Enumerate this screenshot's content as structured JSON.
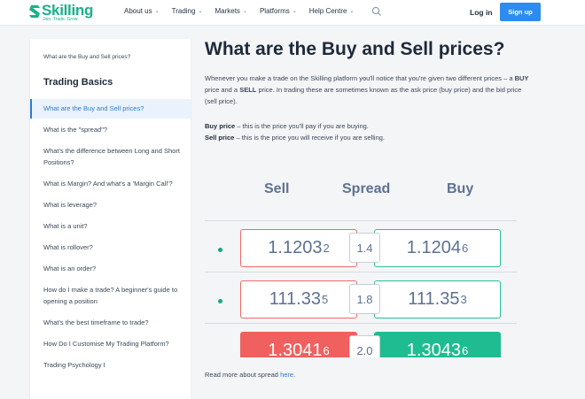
{
  "header": {
    "logo_text": "Skilling",
    "logo_tagline": "Join. Trade. Grow.",
    "nav": [
      {
        "label": "About us"
      },
      {
        "label": "Trading"
      },
      {
        "label": "Markets"
      },
      {
        "label": "Platforms"
      },
      {
        "label": "Help Centre"
      }
    ],
    "login_label": "Log in",
    "signup_label": "Sign up"
  },
  "sidebar": {
    "breadcrumb": "What are the Buy and Sell prices?",
    "title": "Trading Basics",
    "items": [
      {
        "label": "What are the Buy and Sell prices?",
        "active": true
      },
      {
        "label": "What is the \"spread\"?"
      },
      {
        "label": "What's the difference between Long and Short Positions?"
      },
      {
        "label": "What is Margin? And what's a 'Margin Call'?"
      },
      {
        "label": "What is leverage?"
      },
      {
        "label": "What is a unit?"
      },
      {
        "label": "What is rollover?"
      },
      {
        "label": "What is an order?"
      },
      {
        "label": "How do I make a trade? A beginner's guide to opening a position"
      },
      {
        "label": "What's the best timeframe to trade?"
      },
      {
        "label": "How Do I Customise My Trading Platform?"
      },
      {
        "label": "Trading Psychology I"
      }
    ]
  },
  "main": {
    "title": "What are the Buy and Sell prices?",
    "intro_1": "Whenever you make a trade on the Skilling platform you'll notice that you're given two different prices – a ",
    "intro_buy": "BUY",
    "intro_2": " price and a ",
    "intro_sell": "SELL",
    "intro_3": " price. In trading these are sometimes known as the ask price (buy price) and the bid price (sell price).",
    "buy_term": "Buy price",
    "buy_def": " – this is the price you'll pay if you are buying.",
    "sell_term": "Sell price",
    "sell_def": " – this is the price you will receive if you are selling.",
    "readmore_text": "Read more about spread ",
    "readmore_link": "here",
    "readmore_end": "."
  },
  "price_graphic": {
    "headers": {
      "sell": "Sell",
      "spread": "Spread",
      "buy": "Buy"
    },
    "rows": [
      {
        "sell_main": "1.1203",
        "sell_pip": "2",
        "spread": "1.4",
        "buy_main": "1.1204",
        "buy_pip": "6",
        "filled": false
      },
      {
        "sell_main": "111.33",
        "sell_pip": "5",
        "spread": "1.8",
        "buy_main": "111.35",
        "buy_pip": "3",
        "filled": false
      },
      {
        "sell_main": "1.3041",
        "sell_pip": "6",
        "spread": "2.0",
        "buy_main": "1.3043",
        "buy_pip": "6",
        "filled": true
      }
    ],
    "colors": {
      "sell": "#f0605f",
      "buy": "#1fbc91",
      "text": "#5d7290"
    }
  }
}
